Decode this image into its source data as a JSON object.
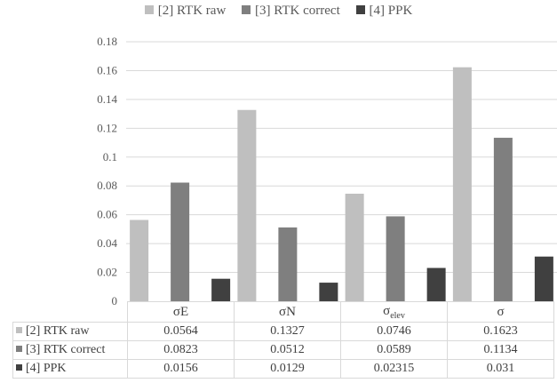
{
  "chart_data": {
    "type": "bar",
    "categories": [
      "σE",
      "σN",
      "σelev",
      "σ"
    ],
    "series": [
      {
        "name": "[2] RTK raw",
        "values": [
          0.0564,
          0.1327,
          0.0746,
          0.1623
        ],
        "color": "#bfbfbf"
      },
      {
        "name": "[3] RTK correct",
        "values": [
          0.0823,
          0.0512,
          0.0589,
          0.1134
        ],
        "color": "#7f7f7f"
      },
      {
        "name": "[4] PPK",
        "values": [
          0.0156,
          0.0129,
          0.0231,
          0.031
        ],
        "color": "#404040"
      }
    ],
    "ylim": [
      0,
      0.18
    ],
    "yticks": [
      "0",
      "0.02",
      "0.04",
      "0.06",
      "0.08",
      "0.1",
      "0.12",
      "0.14",
      "0.16",
      "0.18"
    ],
    "grid": true,
    "legend": "top"
  },
  "table": {
    "rows": [
      {
        "label": "[2] RTK raw",
        "cells": [
          "0.0564",
          "0.1327",
          "0.0746",
          "0.1623"
        ]
      },
      {
        "label": "[3] RTK correct",
        "cells": [
          "0.0823",
          "0.0512",
          "0.0589",
          "0.1134"
        ]
      },
      {
        "label": "[4] PPK",
        "cells": [
          "0.0156",
          "0.0129",
          "0.02315",
          "0.031"
        ]
      }
    ]
  },
  "category_labels": {
    "c0_main": "σE",
    "c1_main": "σN",
    "c2_main": "σ",
    "c2_sub": "elev",
    "c3_main": "σ"
  }
}
